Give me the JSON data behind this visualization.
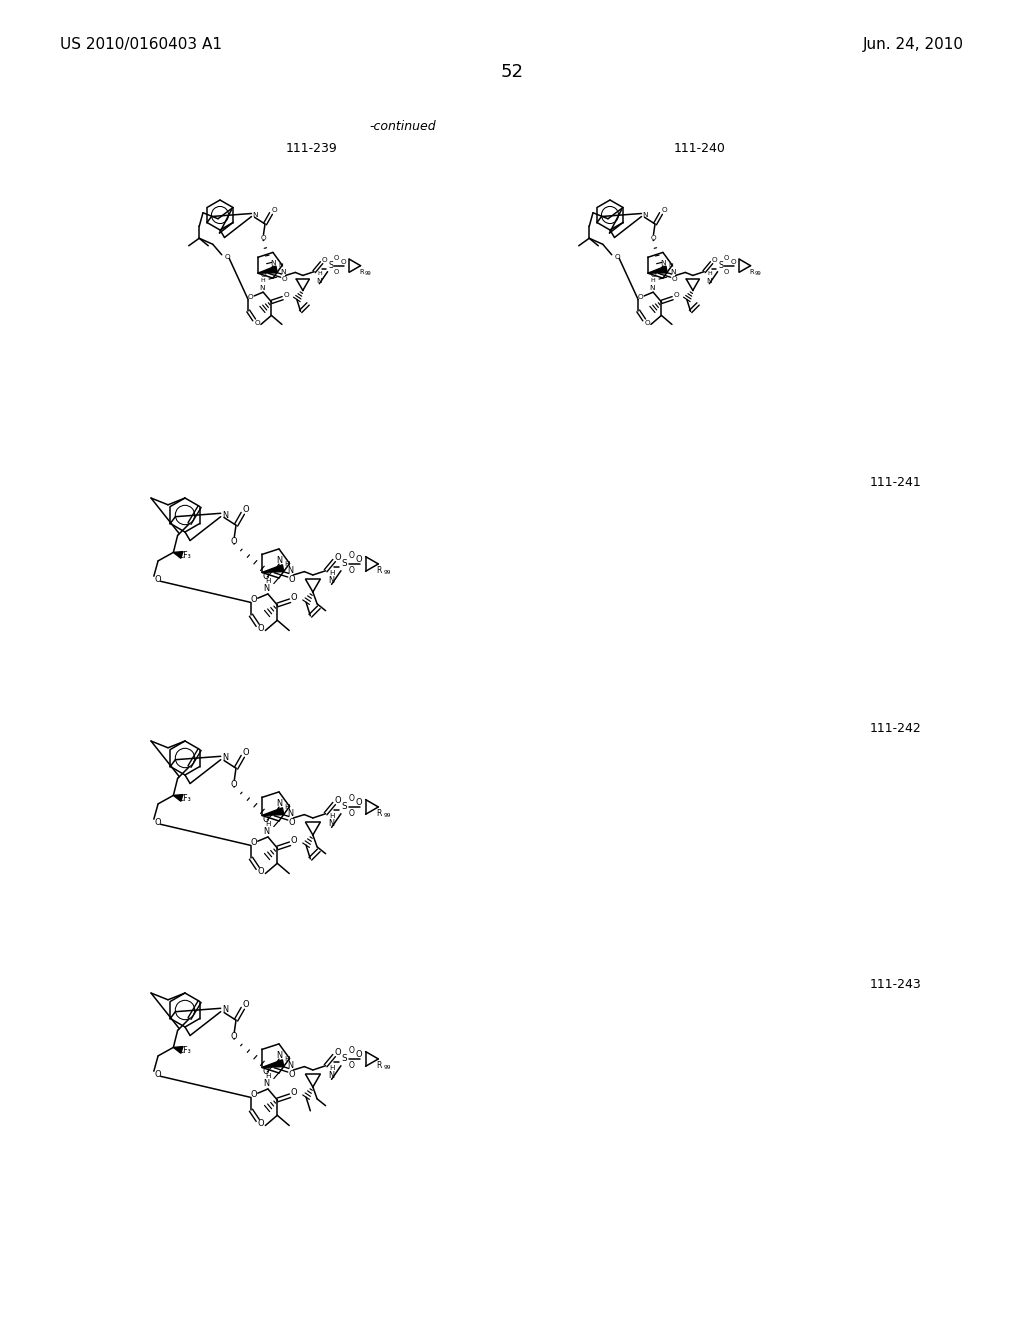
{
  "bg": "#ffffff",
  "header_left": "US 2010/0160403 A1",
  "header_right": "Jun. 24, 2010",
  "page_num": "52",
  "continued": "-continued",
  "lbl_239": "111-239",
  "lbl_240": "111-240",
  "lbl_241": "111-241",
  "lbl_242": "111-242",
  "lbl_243": "111-243"
}
